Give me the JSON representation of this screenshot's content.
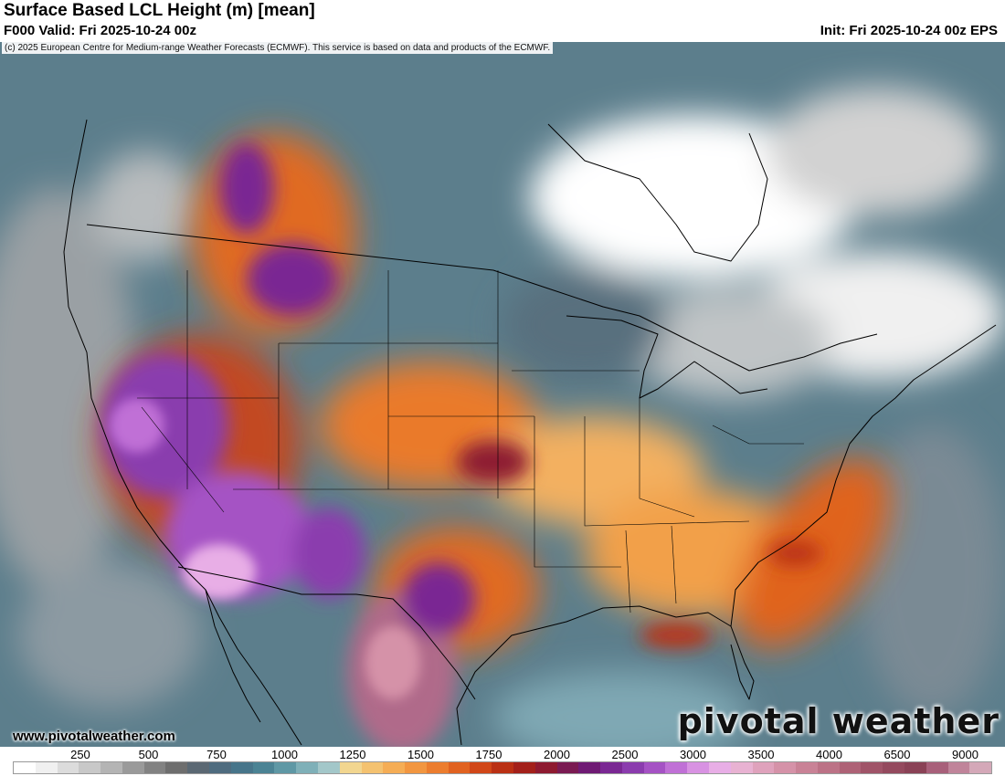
{
  "header": {
    "title": "Surface Based LCL Height (m) [mean]",
    "valid": "F000 Valid: Fri 2025-10-24 00z",
    "init": "Init: Fri 2025-10-24 00z EPS"
  },
  "map": {
    "copyright": "(c) 2025 European Centre for Medium-range Weather Forecasts (ECMWF). This service is based on data and products of the ECMWF.",
    "site_url": "www.pivotalweather.com",
    "brand": "pivotal weather"
  },
  "legend": {
    "ticks": [
      "250",
      "500",
      "750",
      "1000",
      "1250",
      "1500",
      "1750",
      "2000",
      "2500",
      "3000",
      "3500",
      "4000",
      "6500",
      "9000"
    ],
    "colors": [
      "#ffffff",
      "#f0f0f0",
      "#dcdcdc",
      "#c8c8c8",
      "#b4b4b4",
      "#9a9a9a",
      "#828282",
      "#6e6e6e",
      "#5b6873",
      "#4f6c7f",
      "#47758a",
      "#4b8394",
      "#5f98a5",
      "#7fb0b8",
      "#a3c7c9",
      "#f2d690",
      "#f4c270",
      "#f5ad55",
      "#f29640",
      "#ec7d2e",
      "#e16220",
      "#d14718",
      "#ba3014",
      "#a3201a",
      "#8e1a30",
      "#7a1a52",
      "#6f1a74",
      "#7a2893",
      "#8b3cae",
      "#a552c4",
      "#c070d6",
      "#d892e2",
      "#e8aee6",
      "#e8b2d2",
      "#dfa2bc",
      "#d592a8",
      "#c98296",
      "#bc7286",
      "#ae6276",
      "#a05468",
      "#944a5e",
      "#8a4256",
      "#a8607a",
      "#c0849a",
      "#d4a8b8"
    ]
  }
}
